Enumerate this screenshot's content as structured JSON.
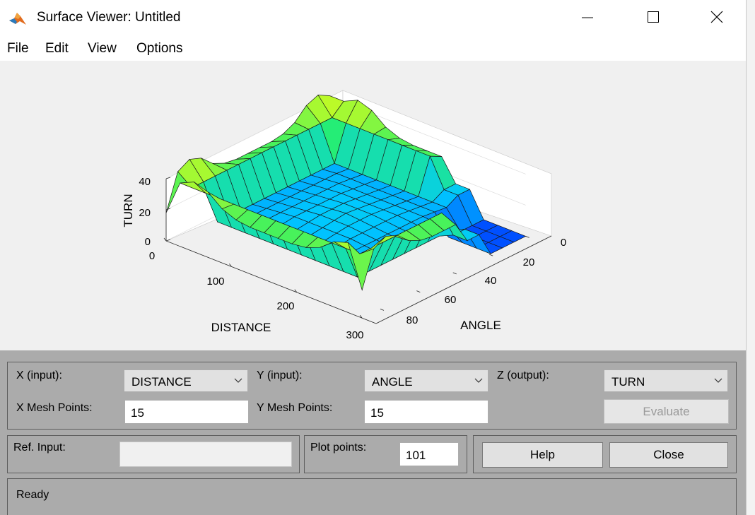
{
  "window": {
    "title": "Surface Viewer: Untitled"
  },
  "menu": {
    "items": [
      "File",
      "Edit",
      "View",
      "Options"
    ]
  },
  "plot": {
    "zlabel": "TURN",
    "xlabel": "DISTANCE",
    "ylabel": "ANGLE",
    "z_ticks": [
      "40",
      "20",
      "0"
    ],
    "x_ticks": [
      "0",
      "100",
      "200",
      "300"
    ],
    "y_ticks": [
      "0",
      "20",
      "40",
      "60",
      "80"
    ]
  },
  "controls": {
    "x_input_label": "X (input):",
    "x_input_value": "DISTANCE",
    "y_input_label": "Y (input):",
    "y_input_value": "ANGLE",
    "z_output_label": "Z (output):",
    "z_output_value": "TURN",
    "x_mesh_label": "X Mesh Points:",
    "x_mesh_value": "15",
    "y_mesh_label": "Y Mesh Points:",
    "y_mesh_value": "15",
    "evaluate_label": "Evaluate",
    "ref_input_label": "Ref. Input:",
    "ref_input_value": "",
    "plot_points_label": "Plot points:",
    "plot_points_value": "101",
    "help_label": "Help",
    "close_label": "Close"
  },
  "status": {
    "text": "Ready"
  }
}
